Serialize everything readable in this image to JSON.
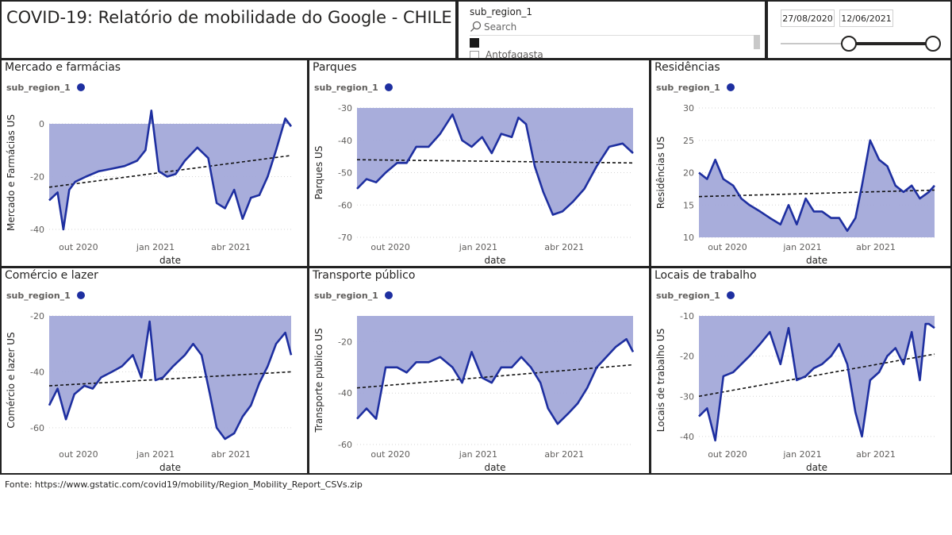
{
  "header": {
    "title": "COVID-19: Relatório de mobilidade do Google - CHILE"
  },
  "slicer": {
    "title": "sub_region_1",
    "search_placeholder": "Search",
    "items": [
      {
        "label": "",
        "checked": true
      },
      {
        "label": "Antofagasta",
        "checked": false
      }
    ]
  },
  "date_range": {
    "start": "27/08/2020",
    "end": "12/06/2021"
  },
  "colors": {
    "line": "#1e2fa0",
    "fill": "#a3a9d9",
    "trend": "#111111"
  },
  "footer": {
    "source": "Fonte: https://www.gstatic.com/covid19/mobility/Region_Mobility_Report_CSVs.zip"
  },
  "chart_data": [
    {
      "type": "area",
      "title": "Mercado e farmácias",
      "legend_title": "sub_region_1",
      "xlabel": "date",
      "ylabel": "Mercado e Farmácias US",
      "x_ticks": [
        "out 2020",
        "jan 2021",
        "abr 2021"
      ],
      "y_ticks": [
        0,
        -20,
        -40
      ],
      "ylim": [
        -43,
        6
      ],
      "baseline": 0,
      "x": [
        "2020-08-27",
        "2020-09-06",
        "2020-09-13",
        "2020-09-20",
        "2020-09-27",
        "2020-10-10",
        "2020-10-25",
        "2020-11-10",
        "2020-11-25",
        "2020-12-10",
        "2020-12-20",
        "2020-12-27",
        "2021-01-05",
        "2021-01-15",
        "2021-01-25",
        "2021-02-05",
        "2021-02-20",
        "2021-03-05",
        "2021-03-15",
        "2021-03-25",
        "2021-04-05",
        "2021-04-15",
        "2021-04-25",
        "2021-05-05",
        "2021-05-15",
        "2021-05-25",
        "2021-06-05",
        "2021-06-12"
      ],
      "values": [
        -29,
        -26,
        -40,
        -25,
        -22,
        -20,
        -18,
        -17,
        -16,
        -14,
        -10,
        5,
        -18,
        -20,
        -19,
        -14,
        -9,
        -13,
        -30,
        -32,
        -25,
        -36,
        -28,
        -27,
        -20,
        -10,
        2,
        -1
      ],
      "trend": [
        -24,
        -12
      ]
    },
    {
      "type": "area",
      "title": "Parques",
      "legend_title": "sub_region_1",
      "xlabel": "date",
      "ylabel": "Parques US",
      "x_ticks": [
        "out 2020",
        "jan 2021",
        "abr 2021"
      ],
      "y_ticks": [
        -30,
        -40,
        -50,
        -60,
        -70
      ],
      "ylim": [
        -70,
        -30
      ],
      "baseline": -30,
      "x": [
        "2020-08-27",
        "2020-09-06",
        "2020-09-16",
        "2020-09-26",
        "2020-10-08",
        "2020-10-18",
        "2020-10-28",
        "2020-11-10",
        "2020-11-22",
        "2020-12-05",
        "2020-12-15",
        "2020-12-25",
        "2021-01-05",
        "2021-01-15",
        "2021-01-25",
        "2021-02-05",
        "2021-02-12",
        "2021-02-20",
        "2021-03-01",
        "2021-03-10",
        "2021-03-20",
        "2021-03-30",
        "2021-04-10",
        "2021-04-22",
        "2021-05-05",
        "2021-05-18",
        "2021-06-01",
        "2021-06-12"
      ],
      "values": [
        -55,
        -52,
        -53,
        -50,
        -47,
        -47,
        -42,
        -42,
        -38,
        -32,
        -40,
        -42,
        -39,
        -44,
        -38,
        -39,
        -33,
        -35,
        -48,
        -56,
        -63,
        -62,
        -59,
        -55,
        -48,
        -42,
        -41,
        -44
      ],
      "trend": [
        -46,
        -47
      ]
    },
    {
      "type": "area",
      "title": "Residências",
      "legend_title": "sub_region_1",
      "xlabel": "date",
      "ylabel": "Residências US",
      "x_ticks": [
        "out 2020",
        "jan 2021",
        "abr 2021"
      ],
      "y_ticks": [
        30,
        25,
        20,
        15,
        10
      ],
      "ylim": [
        10,
        30
      ],
      "baseline": 10,
      "x": [
        "2020-08-27",
        "2020-09-06",
        "2020-09-16",
        "2020-09-26",
        "2020-10-08",
        "2020-10-18",
        "2020-10-28",
        "2020-11-10",
        "2020-11-22",
        "2020-12-05",
        "2020-12-15",
        "2020-12-25",
        "2021-01-05",
        "2021-01-15",
        "2021-01-25",
        "2021-02-05",
        "2021-02-15",
        "2021-02-25",
        "2021-03-07",
        "2021-03-15",
        "2021-03-25",
        "2021-04-05",
        "2021-04-15",
        "2021-04-25",
        "2021-05-05",
        "2021-05-15",
        "2021-05-25",
        "2021-06-05",
        "2021-06-12"
      ],
      "values": [
        20,
        19,
        22,
        19,
        18,
        16,
        15,
        14,
        13,
        12,
        15,
        12,
        16,
        14,
        14,
        13,
        13,
        11,
        13,
        18,
        25,
        22,
        21,
        18,
        17,
        18,
        16,
        17,
        18
      ],
      "trend": [
        16.3,
        17.3
      ]
    },
    {
      "type": "area",
      "title": "Comércio e lazer",
      "legend_title": "sub_region_1",
      "xlabel": "date",
      "ylabel": "Comércio e lazer US",
      "x_ticks": [
        "out 2020",
        "jan 2021",
        "abr 2021"
      ],
      "y_ticks": [
        -20,
        -40,
        -60
      ],
      "ylim": [
        -66,
        -20
      ],
      "baseline": -20,
      "x": [
        "2020-08-27",
        "2020-09-06",
        "2020-09-16",
        "2020-09-26",
        "2020-10-08",
        "2020-10-18",
        "2020-10-28",
        "2020-11-10",
        "2020-11-22",
        "2020-12-05",
        "2020-12-15",
        "2020-12-25",
        "2021-01-01",
        "2021-01-10",
        "2021-01-22",
        "2021-02-05",
        "2021-02-15",
        "2021-02-25",
        "2021-03-07",
        "2021-03-15",
        "2021-03-25",
        "2021-04-05",
        "2021-04-15",
        "2021-04-25",
        "2021-05-05",
        "2021-05-15",
        "2021-05-25",
        "2021-06-05",
        "2021-06-12"
      ],
      "values": [
        -52,
        -46,
        -57,
        -48,
        -45,
        -46,
        -42,
        -40,
        -38,
        -34,
        -42,
        -22,
        -43,
        -42,
        -38,
        -34,
        -30,
        -34,
        -48,
        -60,
        -64,
        -62,
        -56,
        -52,
        -44,
        -38,
        -30,
        -26,
        -34
      ],
      "trend": [
        -45,
        -40
      ]
    },
    {
      "type": "area",
      "title": "Transporte público",
      "legend_title": "sub_region_1",
      "xlabel": "date",
      "ylabel": "Transporte publico US",
      "x_ticks": [
        "out 2020",
        "jan 2021",
        "abr 2021"
      ],
      "y_ticks": [
        -20,
        -40,
        -60
      ],
      "ylim": [
        -60,
        -10
      ],
      "baseline": -10,
      "x": [
        "2020-08-27",
        "2020-09-06",
        "2020-09-16",
        "2020-09-26",
        "2020-10-08",
        "2020-10-18",
        "2020-10-28",
        "2020-11-10",
        "2020-11-22",
        "2020-12-05",
        "2020-12-15",
        "2020-12-25",
        "2021-01-05",
        "2021-01-15",
        "2021-01-25",
        "2021-02-05",
        "2021-02-15",
        "2021-02-25",
        "2021-03-07",
        "2021-03-15",
        "2021-03-25",
        "2021-04-05",
        "2021-04-15",
        "2021-04-25",
        "2021-05-05",
        "2021-05-15",
        "2021-05-25",
        "2021-06-05",
        "2021-06-12"
      ],
      "values": [
        -50,
        -46,
        -50,
        -30,
        -30,
        -32,
        -28,
        -28,
        -26,
        -30,
        -36,
        -24,
        -34,
        -36,
        -30,
        -30,
        -26,
        -30,
        -36,
        -46,
        -52,
        -48,
        -44,
        -38,
        -30,
        -26,
        -22,
        -19,
        -24
      ],
      "trend": [
        -38,
        -29
      ]
    },
    {
      "type": "area",
      "title": "Locais de trabalho",
      "legend_title": "sub_region_1",
      "xlabel": "date",
      "ylabel": "Locais de trabalho US",
      "x_ticks": [
        "out 2020",
        "jan 2021",
        "abr 2021"
      ],
      "y_ticks": [
        -10,
        -20,
        -30,
        -40
      ],
      "ylim": [
        -42,
        -10
      ],
      "baseline": -10,
      "x": [
        "2020-08-27",
        "2020-09-06",
        "2020-09-16",
        "2020-09-26",
        "2020-10-08",
        "2020-10-18",
        "2020-10-28",
        "2020-11-10",
        "2020-11-22",
        "2020-12-05",
        "2020-12-15",
        "2020-12-25",
        "2021-01-05",
        "2021-01-15",
        "2021-01-25",
        "2021-02-05",
        "2021-02-15",
        "2021-02-25",
        "2021-03-07",
        "2021-03-15",
        "2021-03-25",
        "2021-04-05",
        "2021-04-15",
        "2021-04-25",
        "2021-05-05",
        "2021-05-15",
        "2021-05-25",
        "2021-06-01",
        "2021-06-05",
        "2021-06-12"
      ],
      "values": [
        -35,
        -33,
        -41,
        -25,
        -24,
        -22,
        -20,
        -17,
        -14,
        -22,
        -13,
        -26,
        -25,
        -23,
        -22,
        -20,
        -17,
        -22,
        -34,
        -40,
        -26,
        -24,
        -20,
        -18,
        -22,
        -14,
        -26,
        -12,
        -12,
        -13
      ],
      "trend": [
        -30,
        -19.5
      ]
    }
  ]
}
